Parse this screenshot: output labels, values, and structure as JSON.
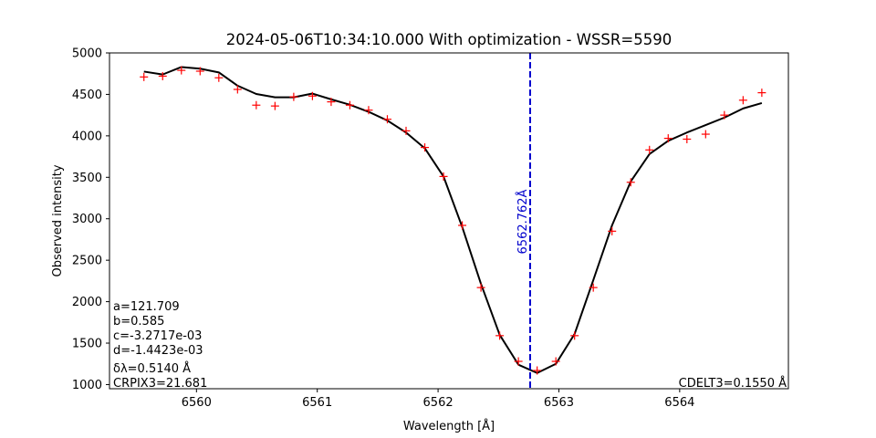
{
  "chart_data": {
    "type": "line",
    "title": "2024-05-06T10:34:10.000 With optimization - WSSR=5590",
    "xlabel": "Wavelength [Å]",
    "ylabel": "Observed intensity",
    "xlim": [
      6559.28,
      6564.9
    ],
    "ylim": [
      950,
      5000
    ],
    "xticks": [
      {
        "value": 6560,
        "label": "6560"
      },
      {
        "value": 6561,
        "label": "6561"
      },
      {
        "value": 6562,
        "label": "6562"
      },
      {
        "value": 6563,
        "label": "6563"
      },
      {
        "value": 6564,
        "label": "6564"
      }
    ],
    "yticks": [
      {
        "value": 1000,
        "label": "1000"
      },
      {
        "value": 1500,
        "label": "1500"
      },
      {
        "value": 2000,
        "label": "2000"
      },
      {
        "value": 2500,
        "label": "2500"
      },
      {
        "value": 3000,
        "label": "3000"
      },
      {
        "value": 3500,
        "label": "3500"
      },
      {
        "value": 4000,
        "label": "4000"
      },
      {
        "value": 4500,
        "label": "4500"
      },
      {
        "value": 5000,
        "label": "5000"
      }
    ],
    "grid": false,
    "colors": {
      "fit": "#000000",
      "observed": "#ff0000",
      "center": "#0000cc"
    },
    "series": [
      {
        "style": "markers-plus",
        "color": "#ff0000",
        "x": [
          6559.565,
          6559.72,
          6559.875,
          6560.03,
          6560.185,
          6560.34,
          6560.495,
          6560.65,
          6560.805,
          6560.96,
          6561.115,
          6561.27,
          6561.425,
          6561.58,
          6561.735,
          6561.89,
          6562.045,
          6562.2,
          6562.355,
          6562.51,
          6562.665,
          6562.82,
          6562.975,
          6563.13,
          6563.285,
          6563.44,
          6563.595,
          6563.75,
          6563.905,
          6564.06,
          6564.215,
          6564.37,
          6564.525,
          6564.68
        ],
        "y": [
          4710,
          4720,
          4790,
          4780,
          4700,
          4560,
          4370,
          4360,
          4470,
          4480,
          4410,
          4370,
          4310,
          4200,
          4060,
          3860,
          3510,
          2920,
          2170,
          1590,
          1280,
          1170,
          1280,
          1590,
          2170,
          2850,
          3440,
          3830,
          3970,
          3960,
          4020,
          4250,
          4430,
          4520
        ]
      },
      {
        "style": "line",
        "color": "#000000",
        "x": [
          6559.565,
          6559.72,
          6559.875,
          6560.03,
          6560.185,
          6560.34,
          6560.495,
          6560.65,
          6560.805,
          6560.96,
          6561.115,
          6561.27,
          6561.425,
          6561.58,
          6561.735,
          6561.89,
          6562.045,
          6562.2,
          6562.355,
          6562.51,
          6562.665,
          6562.82,
          6562.975,
          6563.13,
          6563.285,
          6563.44,
          6563.595,
          6563.75,
          6563.905,
          6564.06,
          6564.215,
          6564.37,
          6564.525,
          6564.68
        ],
        "y": [
          4775,
          4740,
          4830,
          4810,
          4765,
          4605,
          4505,
          4465,
          4465,
          4510,
          4440,
          4375,
          4290,
          4185,
          4040,
          3850,
          3510,
          2900,
          2215,
          1600,
          1240,
          1140,
          1250,
          1610,
          2260,
          2920,
          3450,
          3780,
          3940,
          4040,
          4130,
          4220,
          4330,
          4395
        ]
      }
    ],
    "vline": {
      "x": 6562.762,
      "color": "#0000cc",
      "style": "dashed",
      "label": "6562.762Å"
    },
    "annotations": {
      "params": [
        "a=121.709",
        "b=0.585",
        "c=-3.2717e-03",
        "d=-1.4423e-03",
        "δλ=0.5140 Å",
        "CRPIX3=21.681"
      ],
      "cdelt": "CDELT3=0.1550 Å"
    }
  }
}
